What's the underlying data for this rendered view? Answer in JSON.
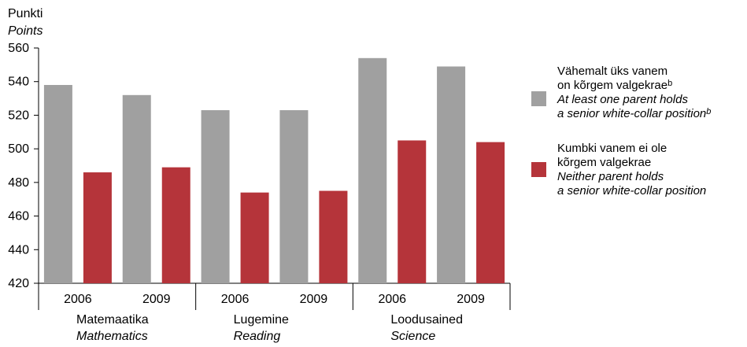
{
  "chart_data": {
    "type": "bar",
    "ylabel": "Punkti",
    "ylabel_en": "Points",
    "ylim": [
      420,
      560
    ],
    "yticks": [
      420,
      440,
      460,
      480,
      500,
      520,
      540,
      560
    ],
    "grid": false,
    "legend_position": "right",
    "groups": [
      {
        "label": "Matemaatika",
        "label_en": "Mathematics",
        "years": [
          "2006",
          "2009"
        ]
      },
      {
        "label": "Lugemine",
        "label_en": "Reading",
        "years": [
          "2006",
          "2009"
        ]
      },
      {
        "label": "Loodusained",
        "label_en": "Science",
        "years": [
          "2006",
          "2009"
        ]
      }
    ],
    "series": [
      {
        "name_line1": "Vähemalt üks vanem",
        "name_line2": "on kõrgem valgekrae",
        "name_en_line1": "At least one parent holds",
        "name_en_line2": "a senior white-collar position",
        "footnote": "b",
        "color": "#a0a0a0",
        "values": [
          538,
          532,
          523,
          523,
          554,
          549
        ]
      },
      {
        "name_line1": "Kumbki vanem ei ole",
        "name_line2": "kõrgem valgekrae",
        "name_en_line1": "Neither parent holds",
        "name_en_line2": "a senior white-collar position",
        "color": "#b5343a",
        "values": [
          486,
          489,
          474,
          475,
          505,
          504
        ]
      }
    ]
  }
}
